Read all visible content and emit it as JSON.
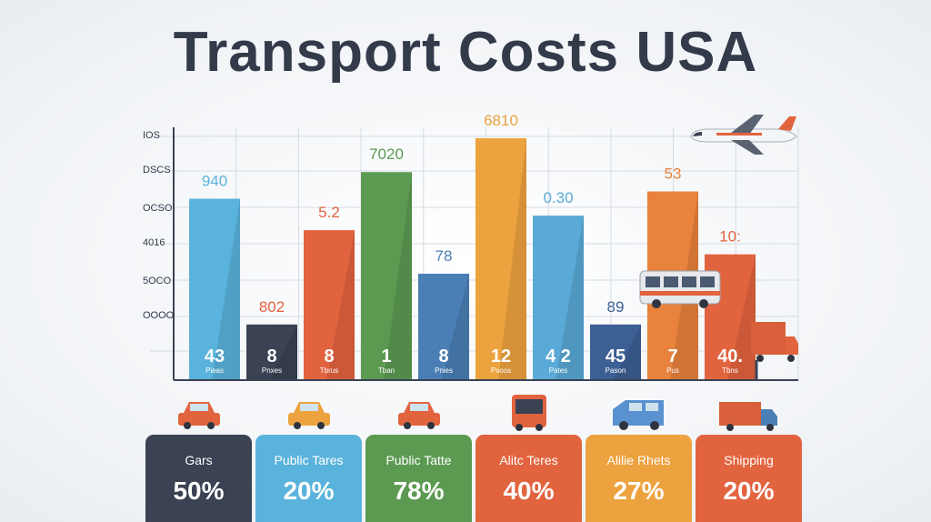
{
  "title": "Transport Costs USA",
  "chart_data": {
    "type": "bar",
    "title": "Transport Costs USA",
    "y_tick_labels": [
      "IOS",
      "DSCS",
      "OCSO",
      "4016",
      "5OCO",
      "OOOO"
    ],
    "ylim": [
      0,
      100
    ],
    "grid": true,
    "bars": [
      {
        "value": 75,
        "top_label": "940",
        "bottom_value": "43",
        "bottom_text": "Pieas",
        "color": "#5ab3dc"
      },
      {
        "value": 23,
        "top_label": "802",
        "bottom_value": "8",
        "bottom_text": "Pnxes",
        "color": "#3a4254"
      },
      {
        "value": 62,
        "top_label": "5.2",
        "bottom_value": "8",
        "bottom_text": "Tbrus",
        "color": "#e2643f"
      },
      {
        "value": 86,
        "top_label": "7020",
        "bottom_value": "1",
        "bottom_text": "Tban",
        "color": "#5c9a52"
      },
      {
        "value": 44,
        "top_label": "78",
        "bottom_value": "8",
        "bottom_text": "Pnies",
        "color": "#4a7fb5"
      },
      {
        "value": 100,
        "top_label": "6810",
        "bottom_value": "12",
        "bottom_text": "Psoos",
        "color": "#eca23e"
      },
      {
        "value": 68,
        "top_label": "0.30",
        "bottom_value": "4 2",
        "bottom_text": "Pates",
        "color": "#5aa9d6"
      },
      {
        "value": 23,
        "top_label": "89",
        "bottom_value": "45",
        "bottom_text": "Pason",
        "color": "#3c5f94"
      },
      {
        "value": 78,
        "top_label": "53",
        "bottom_value": "7",
        "bottom_text": "Pus",
        "color": "#e8823c"
      },
      {
        "value": 52,
        "top_label": "10:",
        "bottom_value": "40.",
        "bottom_text": "Tbns",
        "color": "#e2643f"
      }
    ]
  },
  "cards": [
    {
      "name": "Gars",
      "value": "50%",
      "color": "#3a4254"
    },
    {
      "name": "Public Tares",
      "value": "20%",
      "color": "#5ab3dc"
    },
    {
      "name": "Public Tatte",
      "value": "78%",
      "color": "#5c9a52"
    },
    {
      "name": "Alitc Teres",
      "value": "40%",
      "color": "#e2643f"
    },
    {
      "name": "Alilie Rhets",
      "value": "27%",
      "color": "#eca23e"
    },
    {
      "name": "Shipping",
      "value": "20%",
      "color": "#e2643f"
    }
  ],
  "icons": {
    "airplane": "airplane-icon",
    "bus": "bus-icon",
    "truck": "truck-icon",
    "card_vehicles": [
      "car-icon",
      "taxi-icon",
      "car-icon",
      "bus-icon",
      "van-icon",
      "truck-icon"
    ]
  }
}
